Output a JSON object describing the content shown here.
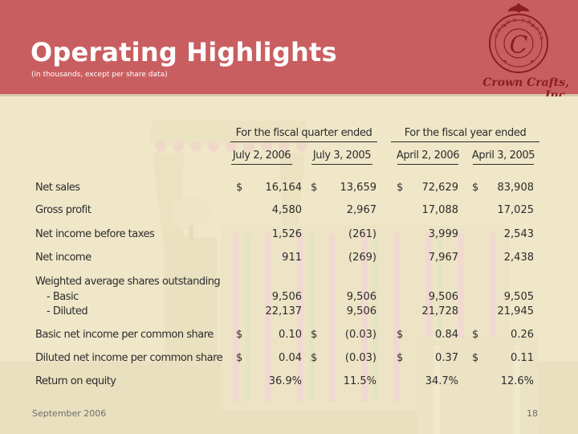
{
  "slide": {
    "title": "Operating Highlights",
    "subtitle": "(in thousands, except per share data)",
    "company": "Crown Crafts, Inc.",
    "logo_ring_text": "CROWN CRAFTS",
    "logo_letter": "C",
    "footer_date": "September 2006",
    "page_number": "18",
    "colors": {
      "header": "#c95e60",
      "background": "#f1ebcf",
      "logo": "#8a1e22"
    }
  },
  "table": {
    "group_headers": [
      "For the fiscal quarter ended",
      "For the fiscal year ended"
    ],
    "columns": [
      "July 2, 2006",
      "July 3, 2005",
      "April 2, 2006",
      "April 3, 2005"
    ],
    "rows": [
      {
        "label": "Net sales",
        "dollar": [
          "$",
          "$",
          "$",
          "$"
        ],
        "values": [
          "16,164",
          "13,659",
          "72,629",
          "83,908"
        ]
      },
      {
        "label": "Gross profit",
        "dollar": [
          "",
          "",
          "",
          ""
        ],
        "values": [
          "4,580",
          "2,967",
          "17,088",
          "17,025"
        ]
      },
      {
        "label": "Net income before taxes",
        "dollar": [
          "",
          "",
          "",
          ""
        ],
        "values": [
          "1,526",
          "(261)",
          "3,999",
          "2,543"
        ]
      },
      {
        "label": "Net income",
        "dollar": [
          "",
          "",
          "",
          ""
        ],
        "values": [
          "911",
          "(269)",
          "7,967",
          "2,438"
        ]
      },
      {
        "label": "Weighted average shares outstanding",
        "dollar": [
          "",
          "",
          "",
          ""
        ],
        "values": [
          "",
          "",
          "",
          ""
        ]
      },
      {
        "label": "- Basic",
        "dollar": [
          "",
          "",
          "",
          ""
        ],
        "values": [
          "9,506",
          "9,506",
          "9,506",
          "9,505"
        ]
      },
      {
        "label": "- Diluted",
        "dollar": [
          "",
          "",
          "",
          ""
        ],
        "values": [
          "22,137",
          "9,506",
          "21,728",
          "21,945"
        ]
      },
      {
        "label": "Basic net income per common share",
        "dollar": [
          "$",
          "$",
          "$",
          "$"
        ],
        "values": [
          "0.10",
          "(0.03)",
          "0.84",
          "0.26"
        ]
      },
      {
        "label": "Diluted net income per common share",
        "dollar": [
          "$",
          "$",
          "$",
          "$"
        ],
        "values": [
          "0.04",
          "(0.03)",
          "0.37",
          "0.11"
        ]
      },
      {
        "label": "Return on equity",
        "dollar": [
          "",
          "",
          "",
          ""
        ],
        "values": [
          "36.9%",
          "11.5%",
          "34.7%",
          "12.6%"
        ]
      }
    ]
  }
}
